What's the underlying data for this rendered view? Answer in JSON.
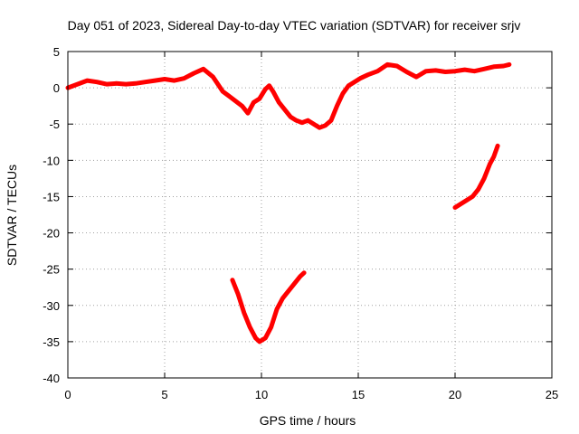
{
  "chart_data": {
    "type": "line",
    "title": "Day 051 of 2023, Sidereal Day-to-day VTEC variation (SDTVAR) for receiver srjv",
    "xlabel": "GPS time / hours",
    "ylabel": "SDTVAR / TECUs",
    "xlim": [
      0,
      25
    ],
    "ylim": [
      -40,
      5
    ],
    "xticks": [
      0,
      5,
      10,
      15,
      20,
      25
    ],
    "yticks": [
      5,
      0,
      -5,
      -10,
      -15,
      -20,
      -25,
      -30,
      -35,
      -40
    ],
    "grid": true,
    "legend": "none",
    "color": "#ff0000",
    "series": [
      {
        "name": "segment-1",
        "x": [
          0.0,
          0.5,
          1.0,
          1.5,
          2.0,
          2.5,
          3.0,
          3.5,
          4.0,
          4.5,
          5.0,
          5.5,
          6.0,
          6.5,
          7.0,
          7.5,
          8.0,
          8.5,
          9.0,
          9.3,
          9.6,
          9.9,
          10.2,
          10.4,
          10.6,
          10.9,
          11.2,
          11.5,
          11.8,
          12.1,
          12.4,
          12.7,
          13.0,
          13.3,
          13.6,
          13.9,
          14.2,
          14.5,
          14.8,
          15.1,
          15.5,
          16.0,
          16.5,
          17.0,
          17.5,
          18.0,
          18.5,
          19.0,
          19.5,
          20.0,
          20.5,
          21.0,
          21.5,
          22.0,
          22.5,
          22.8
        ],
        "y": [
          0.0,
          0.5,
          1.0,
          0.8,
          0.5,
          0.6,
          0.5,
          0.6,
          0.8,
          1.0,
          1.2,
          1.0,
          1.3,
          2.0,
          2.6,
          1.5,
          -0.5,
          -1.5,
          -2.5,
          -3.5,
          -2.0,
          -1.5,
          -0.2,
          0.3,
          -0.5,
          -2.0,
          -3.0,
          -4.0,
          -4.5,
          -4.8,
          -4.5,
          -5.0,
          -5.5,
          -5.2,
          -4.5,
          -2.5,
          -0.8,
          0.3,
          0.8,
          1.3,
          1.8,
          2.3,
          3.2,
          3.0,
          2.2,
          1.5,
          2.3,
          2.4,
          2.2,
          2.3,
          2.5,
          2.3,
          2.6,
          2.9,
          3.0,
          3.2
        ]
      },
      {
        "name": "segment-2",
        "x": [
          8.5,
          8.8,
          9.1,
          9.4,
          9.7,
          9.9,
          10.2,
          10.5,
          10.8,
          11.1,
          11.4,
          11.7,
          12.0,
          12.2
        ],
        "y": [
          -26.5,
          -28.5,
          -31.0,
          -33.0,
          -34.5,
          -35.0,
          -34.5,
          -33.0,
          -30.5,
          -29.0,
          -28.0,
          -27.0,
          -26.0,
          -25.5
        ]
      },
      {
        "name": "segment-3",
        "x": [
          20.0,
          20.3,
          20.6,
          20.9,
          21.2,
          21.5,
          21.8,
          22.0,
          22.2
        ],
        "y": [
          -16.5,
          -16.0,
          -15.5,
          -15.0,
          -14.0,
          -12.5,
          -10.5,
          -9.5,
          -8.0
        ]
      }
    ]
  }
}
